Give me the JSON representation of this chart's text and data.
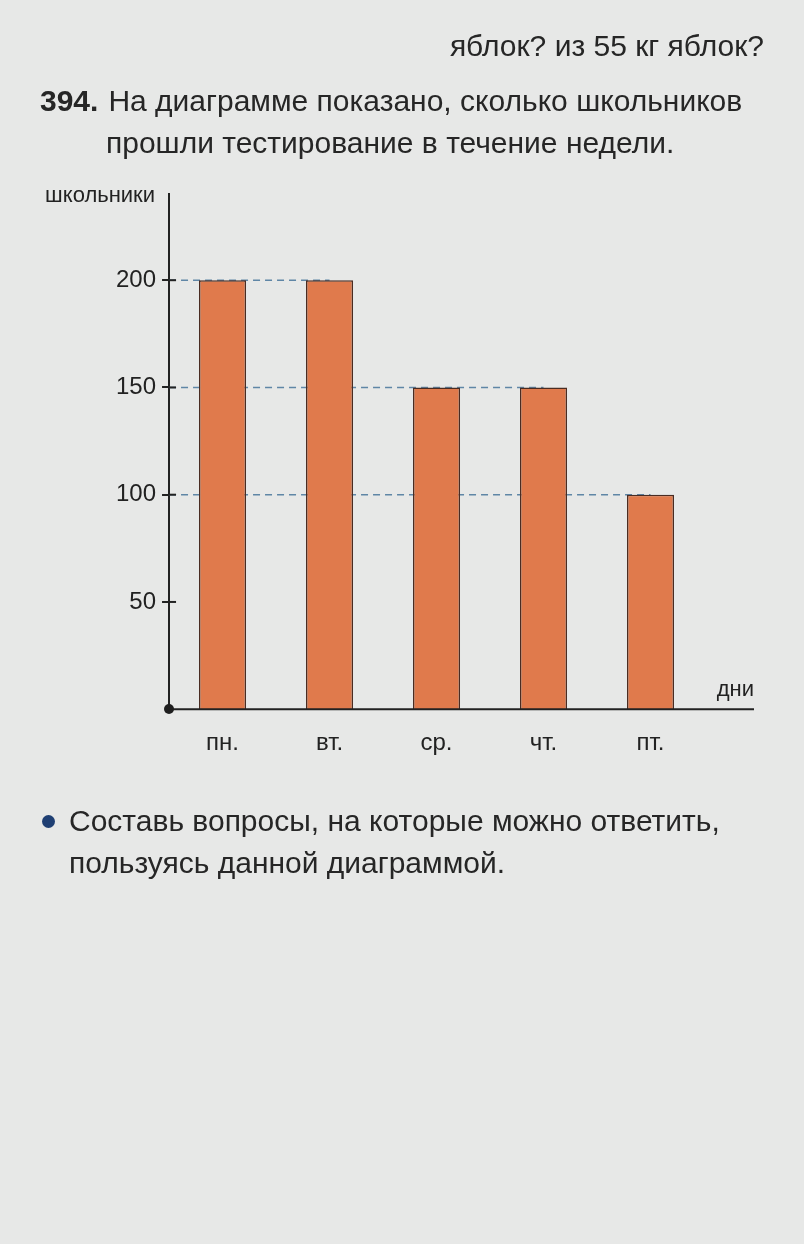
{
  "chart_data": {
    "type": "bar",
    "title": "394. На диаграмме показано, сколько школьников прошли тестирование в течение недели.",
    "xlabel": "дни",
    "ylabel": "школьники",
    "categories": [
      "пн.",
      "вт.",
      "ср.",
      "чт.",
      "пт."
    ],
    "values": [
      200,
      200,
      150,
      150,
      100
    ],
    "color": "#e07a4c",
    "ylim": [
      0,
      240
    ],
    "yticks": [
      50,
      100,
      150,
      200
    ],
    "ref_lines": [
      {
        "axis": "y",
        "value": 200,
        "color": "#5f86a6",
        "line_style": "dashed"
      },
      {
        "axis": "y",
        "value": 150,
        "color": "#5f86a6",
        "line_style": "dashed"
      },
      {
        "axis": "y",
        "value": 100,
        "color": "#5f86a6",
        "line_style": "dashed"
      }
    ],
    "annotations": [
      "яблок? из 55 кг яблок?",
      "Составь вопросы, на которые можно ответить, пользуясь данной диаграммой."
    ]
  }
}
